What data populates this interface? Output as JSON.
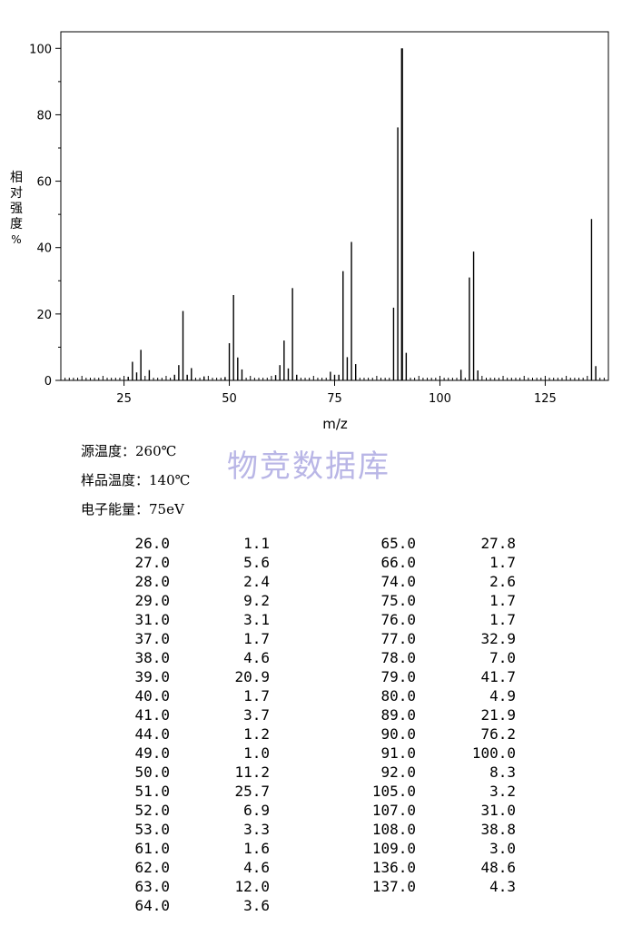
{
  "chart_data": {
    "type": "bar",
    "xlabel": "m/z",
    "ylabel": [
      "相",
      "对",
      "强",
      "度",
      "%"
    ],
    "xlim": [
      10,
      140
    ],
    "ylim": [
      0,
      105
    ],
    "xticks": [
      25,
      50,
      75,
      100,
      125
    ],
    "yticks": [
      0,
      20,
      40,
      60,
      80,
      100
    ],
    "x": [
      26,
      27,
      28,
      29,
      31,
      37,
      38,
      39,
      40,
      41,
      44,
      49,
      50,
      51,
      52,
      53,
      61,
      62,
      63,
      64,
      65,
      66,
      74,
      75,
      76,
      77,
      78,
      79,
      80,
      89,
      90,
      91,
      92,
      105,
      107,
      108,
      109,
      136,
      137
    ],
    "values": [
      1.1,
      5.6,
      2.4,
      9.2,
      3.1,
      1.7,
      4.6,
      20.9,
      1.7,
      3.7,
      1.2,
      1.0,
      11.2,
      25.7,
      6.9,
      3.3,
      1.6,
      4.6,
      12.0,
      3.6,
      27.8,
      1.7,
      2.6,
      1.7,
      1.7,
      32.9,
      7.0,
      41.7,
      4.9,
      21.9,
      76.2,
      100.0,
      8.3,
      3.2,
      31.0,
      38.8,
      3.0,
      48.6,
      4.3
    ]
  },
  "conditions": {
    "source_temp": "源温度：260℃",
    "sample_temp": "样品温度：140℃",
    "electron_energy": "电子能量：75eV"
  },
  "watermark": "物竞数据库",
  "peak_table": {
    "left": [
      [
        "26.0",
        "1.1"
      ],
      [
        "27.0",
        "5.6"
      ],
      [
        "28.0",
        "2.4"
      ],
      [
        "29.0",
        "9.2"
      ],
      [
        "31.0",
        "3.1"
      ],
      [
        "37.0",
        "1.7"
      ],
      [
        "38.0",
        "4.6"
      ],
      [
        "39.0",
        "20.9"
      ],
      [
        "40.0",
        "1.7"
      ],
      [
        "41.0",
        "3.7"
      ],
      [
        "44.0",
        "1.2"
      ],
      [
        "49.0",
        "1.0"
      ],
      [
        "50.0",
        "11.2"
      ],
      [
        "51.0",
        "25.7"
      ],
      [
        "52.0",
        "6.9"
      ],
      [
        "53.0",
        "3.3"
      ],
      [
        "61.0",
        "1.6"
      ],
      [
        "62.0",
        "4.6"
      ],
      [
        "63.0",
        "12.0"
      ],
      [
        "64.0",
        "3.6"
      ]
    ],
    "right": [
      [
        "65.0",
        "27.8"
      ],
      [
        "66.0",
        "1.7"
      ],
      [
        "74.0",
        "2.6"
      ],
      [
        "75.0",
        "1.7"
      ],
      [
        "76.0",
        "1.7"
      ],
      [
        "77.0",
        "32.9"
      ],
      [
        "78.0",
        "7.0"
      ],
      [
        "79.0",
        "41.7"
      ],
      [
        "80.0",
        "4.9"
      ],
      [
        "89.0",
        "21.9"
      ],
      [
        "90.0",
        "76.2"
      ],
      [
        "91.0",
        "100.0"
      ],
      [
        "92.0",
        "8.3"
      ],
      [
        "105.0",
        "3.2"
      ],
      [
        "107.0",
        "31.0"
      ],
      [
        "108.0",
        "38.8"
      ],
      [
        "109.0",
        "3.0"
      ],
      [
        "136.0",
        "48.6"
      ],
      [
        "137.0",
        "4.3"
      ]
    ]
  }
}
